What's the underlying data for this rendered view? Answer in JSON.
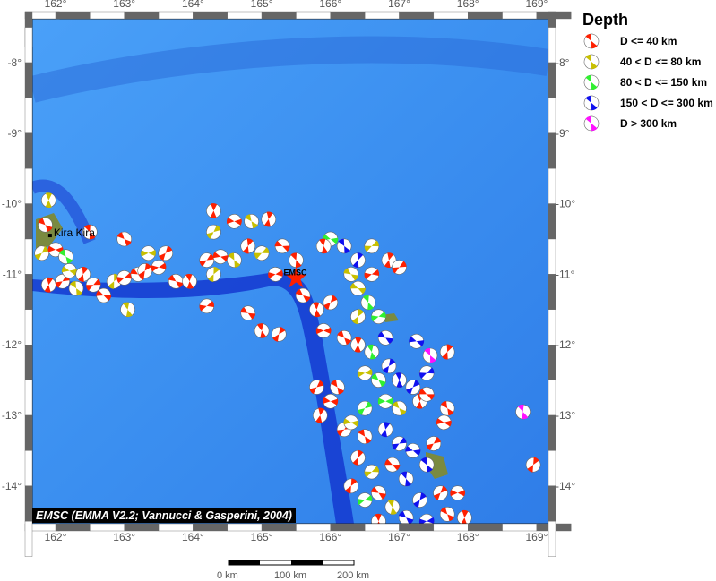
{
  "map": {
    "lon_ticks": [
      "162°",
      "163°",
      "164°",
      "165°",
      "166°",
      "167°",
      "168°",
      "169°"
    ],
    "lon_values": [
      162,
      163,
      164,
      165,
      166,
      167,
      168,
      169
    ],
    "lat_ticks": [
      "-8°",
      "-9°",
      "-10°",
      "-11°",
      "-12°",
      "-13°",
      "-14°"
    ],
    "lat_values": [
      -8,
      -9,
      -10,
      -11,
      -12,
      -13,
      -14
    ],
    "extent": {
      "lon": [
        161.67,
        169.17
      ],
      "lat": [
        -7.64,
        -14.64
      ]
    },
    "places": [
      {
        "name": "Kira Kira",
        "lon": 161.92,
        "lat": -10.45
      }
    ],
    "epicenter_label": "EMSC",
    "epicenter": {
      "lon": 165.5,
      "lat": -11.05
    },
    "credit": "EMSC (EMMA V2.2; Vannucci & Gasperini, 2004)",
    "colors": {
      "ocean": "#3b8ff0",
      "trench": "#1030c8",
      "land": "#7a8a40"
    }
  },
  "legend": {
    "title": "Depth",
    "items": [
      {
        "label": "D <= 40 km",
        "color": "#ff2000"
      },
      {
        "label": "40 < D <= 80 km",
        "color": "#c8c000"
      },
      {
        "label": "80 < D <= 150 km",
        "color": "#30f030"
      },
      {
        "label": "150 < D <= 300 km",
        "color": "#1010f0"
      },
      {
        "label": "D > 300 km",
        "color": "#ff10ff"
      }
    ]
  },
  "scale_bar": {
    "labels": [
      "0 km",
      "100 km",
      "200 km"
    ]
  },
  "events": [
    [
      161.85,
      -10.3,
      1
    ],
    [
      161.9,
      -9.95,
      2
    ],
    [
      161.8,
      -10.7,
      2
    ],
    [
      162.0,
      -10.65,
      1
    ],
    [
      162.15,
      -10.75,
      3
    ],
    [
      161.9,
      -11.15,
      1
    ],
    [
      162.1,
      -11.1,
      1
    ],
    [
      162.2,
      -10.95,
      2
    ],
    [
      162.3,
      -11.2,
      2
    ],
    [
      162.4,
      -11.0,
      1
    ],
    [
      162.55,
      -11.15,
      1
    ],
    [
      162.7,
      -11.3,
      1
    ],
    [
      162.5,
      -10.4,
      1
    ],
    [
      162.85,
      -11.1,
      2
    ],
    [
      163.0,
      -11.05,
      1
    ],
    [
      163.2,
      -11.0,
      1
    ],
    [
      163.05,
      -11.5,
      2
    ],
    [
      163.3,
      -10.95,
      1
    ],
    [
      163.5,
      -10.9,
      1
    ],
    [
      163.75,
      -11.1,
      1
    ],
    [
      163.95,
      -11.1,
      1
    ],
    [
      163.6,
      -10.7,
      1
    ],
    [
      163.35,
      -10.7,
      2
    ],
    [
      163.0,
      -10.5,
      1
    ],
    [
      164.3,
      -10.1,
      1
    ],
    [
      164.3,
      -10.4,
      2
    ],
    [
      164.6,
      -10.25,
      1
    ],
    [
      164.85,
      -10.25,
      2
    ],
    [
      165.1,
      -10.22,
      1
    ],
    [
      164.2,
      -10.8,
      1
    ],
    [
      164.4,
      -10.75,
      1
    ],
    [
      164.6,
      -10.8,
      2
    ],
    [
      164.8,
      -10.6,
      1
    ],
    [
      165.0,
      -10.7,
      2
    ],
    [
      165.3,
      -10.6,
      1
    ],
    [
      165.5,
      -10.8,
      1
    ],
    [
      164.3,
      -11.0,
      2
    ],
    [
      164.2,
      -11.45,
      1
    ],
    [
      164.8,
      -11.55,
      1
    ],
    [
      165.0,
      -11.8,
      1
    ],
    [
      165.25,
      -11.85,
      1
    ],
    [
      165.2,
      -11.0,
      1
    ],
    [
      165.6,
      -11.3,
      1
    ],
    [
      165.8,
      -11.5,
      1
    ],
    [
      166.0,
      -11.4,
      1
    ],
    [
      165.9,
      -11.8,
      1
    ],
    [
      166.2,
      -11.9,
      1
    ],
    [
      166.4,
      -12.0,
      1
    ],
    [
      165.8,
      -12.6,
      1
    ],
    [
      166.0,
      -12.8,
      1
    ],
    [
      166.1,
      -12.6,
      1
    ],
    [
      165.85,
      -13.0,
      1
    ],
    [
      166.2,
      -13.2,
      1
    ],
    [
      166.0,
      -10.5,
      3
    ],
    [
      166.2,
      -10.6,
      4
    ],
    [
      166.4,
      -10.8,
      4
    ],
    [
      166.6,
      -10.6,
      2
    ],
    [
      166.4,
      -11.2,
      2
    ],
    [
      166.55,
      -11.4,
      3
    ],
    [
      166.4,
      -11.6,
      2
    ],
    [
      166.7,
      -11.6,
      3
    ],
    [
      166.8,
      -11.9,
      4
    ],
    [
      166.6,
      -12.1,
      3
    ],
    [
      166.85,
      -12.3,
      4
    ],
    [
      166.5,
      -12.4,
      2
    ],
    [
      166.7,
      -12.5,
      3
    ],
    [
      167.0,
      -12.5,
      4
    ],
    [
      167.2,
      -12.6,
      4
    ],
    [
      166.8,
      -12.8,
      3
    ],
    [
      167.0,
      -12.9,
      2
    ],
    [
      167.3,
      -12.8,
      1
    ],
    [
      166.5,
      -12.9,
      3
    ],
    [
      166.3,
      -13.1,
      2
    ],
    [
      166.5,
      -13.3,
      1
    ],
    [
      166.8,
      -13.2,
      4
    ],
    [
      167.0,
      -13.4,
      4
    ],
    [
      167.2,
      -13.5,
      4
    ],
    [
      167.4,
      -13.7,
      4
    ],
    [
      166.4,
      -13.6,
      1
    ],
    [
      166.6,
      -13.8,
      2
    ],
    [
      166.9,
      -13.7,
      1
    ],
    [
      167.1,
      -13.9,
      4
    ],
    [
      166.3,
      -14.0,
      1
    ],
    [
      166.5,
      -14.2,
      3
    ],
    [
      166.7,
      -14.1,
      1
    ],
    [
      166.9,
      -14.3,
      2
    ],
    [
      167.3,
      -14.2,
      4
    ],
    [
      167.4,
      -14.5,
      4
    ],
    [
      167.1,
      -14.45,
      4
    ],
    [
      166.7,
      -14.5,
      1
    ],
    [
      167.6,
      -14.1,
      1
    ],
    [
      167.85,
      -14.1,
      1
    ],
    [
      167.7,
      -14.4,
      1
    ],
    [
      167.95,
      -14.45,
      1
    ],
    [
      167.5,
      -13.4,
      1
    ],
    [
      167.65,
      -13.1,
      1
    ],
    [
      167.7,
      -12.9,
      1
    ],
    [
      166.85,
      -10.8,
      1
    ],
    [
      167.0,
      -10.9,
      1
    ],
    [
      167.25,
      -11.95,
      4
    ],
    [
      167.45,
      -12.15,
      5
    ],
    [
      167.7,
      -12.1,
      1
    ],
    [
      167.4,
      -12.4,
      4
    ],
    [
      167.4,
      -12.7,
      1
    ],
    [
      168.8,
      -12.95,
      5
    ],
    [
      168.95,
      -13.7,
      1
    ],
    [
      166.6,
      -11.0,
      1
    ],
    [
      166.3,
      -11.0,
      2
    ],
    [
      165.9,
      -10.6,
      1
    ]
  ]
}
